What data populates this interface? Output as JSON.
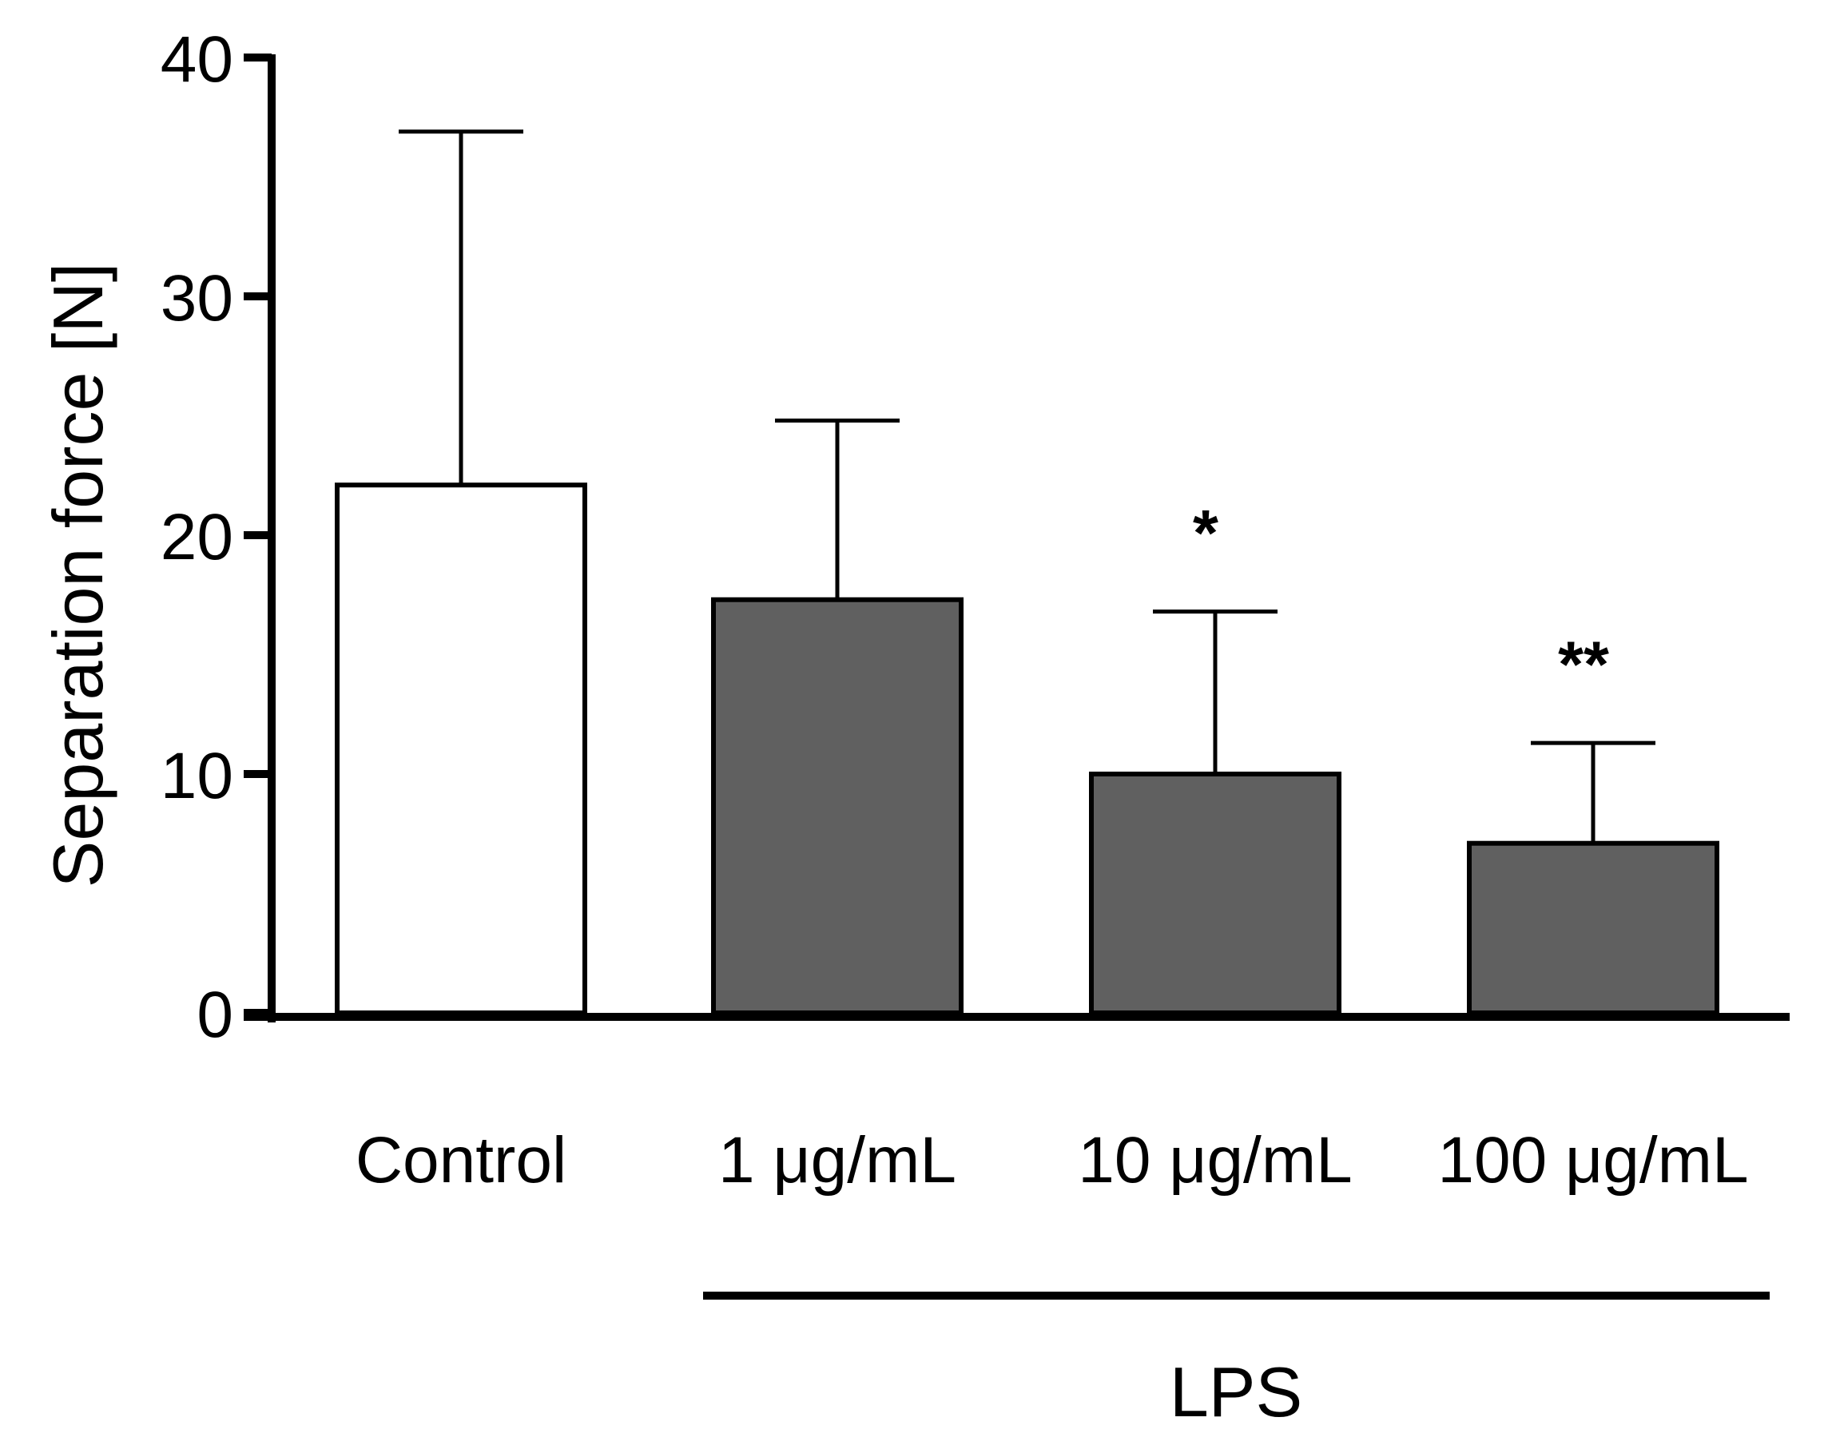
{
  "chart_data": {
    "type": "bar",
    "title": "",
    "xlabel": "",
    "ylabel": "Separation force [N]",
    "ylim": [
      0,
      40
    ],
    "yticks": [
      0,
      10,
      20,
      30,
      40
    ],
    "categories": [
      "Control",
      "1 μg/mL",
      "10 μg/mL",
      "100 μg/mL"
    ],
    "values": [
      22.1,
      17.3,
      10.0,
      7.1
    ],
    "errors_upper": [
      14.8,
      7.5,
      6.8,
      4.2
    ],
    "bar_colors": [
      "#ffffff",
      "#606060",
      "#606060",
      "#606060"
    ],
    "significance": [
      "",
      "",
      "*",
      "**"
    ],
    "group": {
      "label": "LPS",
      "categories": [
        "1 μg/mL",
        "10 μg/mL",
        "100 μg/mL"
      ]
    },
    "grid": false
  }
}
